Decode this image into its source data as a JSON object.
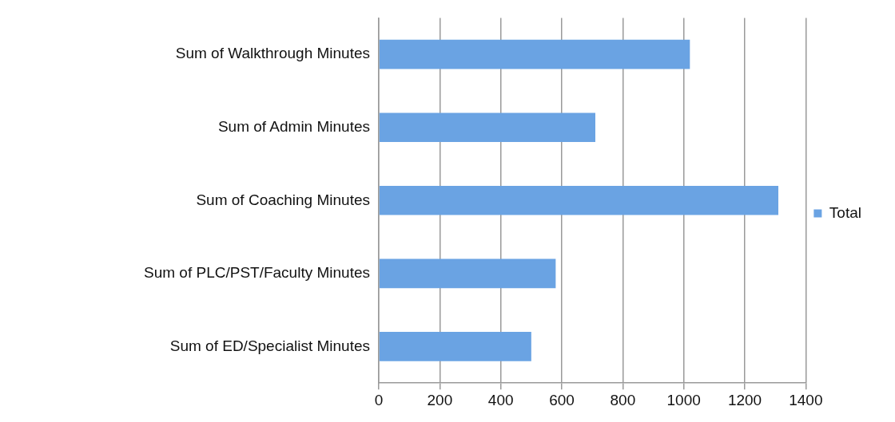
{
  "chart_data": {
    "type": "bar",
    "orientation": "horizontal",
    "categories": [
      "Sum of Walkthrough Minutes",
      "Sum of Admin Minutes",
      "Sum of Coaching Minutes",
      "Sum of PLC/PST/Faculty Minutes",
      "Sum of ED/Specialist Minutes"
    ],
    "series": [
      {
        "name": "Total",
        "color": "#6aa3e3",
        "values": [
          1020,
          710,
          1310,
          580,
          500
        ]
      }
    ],
    "xlim": [
      0,
      1400
    ],
    "xticks": [
      0,
      200,
      400,
      600,
      800,
      1000,
      1200,
      1400
    ],
    "grid": "x",
    "legend": "right"
  }
}
